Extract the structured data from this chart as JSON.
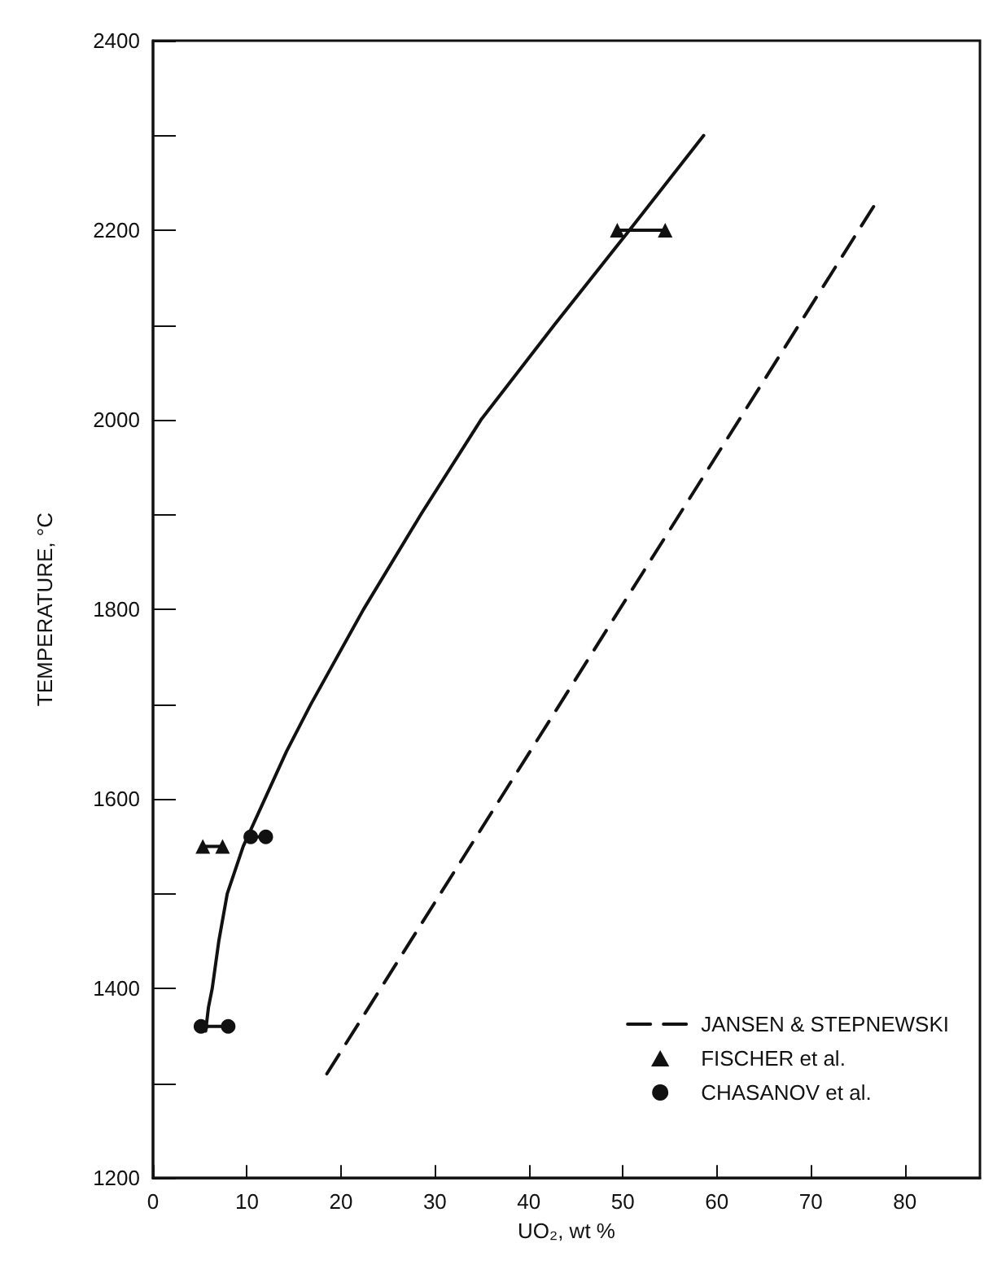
{
  "chart_data": {
    "type": "line",
    "xlabel": "UO₂, wt %",
    "ylabel": "TEMPERATURE, °C",
    "xlim": [
      0,
      88
    ],
    "xticks": [
      0,
      10,
      20,
      30,
      40,
      50,
      60,
      70,
      80
    ],
    "ylim": [
      1200,
      2400
    ],
    "yticks": [
      1200,
      {
        "value": 1300,
        "label": null
      },
      1400,
      {
        "value": 1500,
        "label": null
      },
      1600,
      {
        "value": 1700,
        "label": null
      },
      1800,
      {
        "value": 1900,
        "label": null
      },
      2000,
      {
        "value": 2100,
        "label": null
      },
      2200,
      {
        "value": 2300,
        "label": null
      },
      2400
    ],
    "grid": false,
    "legend": "bottom right",
    "series": [
      {
        "line_style": "solid",
        "marker": "none",
        "color": "#111111",
        "x": [
          5.6,
          5.9,
          6.3,
          7.0,
          7.9,
          9.6,
          11.9,
          14.2,
          16.8,
          22.4,
          28.5,
          34.9,
          42.7,
          50.7,
          58.6
        ],
        "values": [
          1355,
          1380,
          1400,
          1450,
          1500,
          1550,
          1600,
          1650,
          1700,
          1800,
          1900,
          2000,
          2100,
          2200,
          2300
        ]
      },
      {
        "name": "JANSEN & STEPNEWSKI",
        "line_style": "dashed",
        "marker": "none",
        "color": "#111111",
        "x": [
          18.5,
          77
        ],
        "values": [
          1310,
          2230
        ]
      },
      {
        "name": "FISCHER et al.",
        "line_style": "solid",
        "marker": "triangle",
        "color": "#111111",
        "x": [
          5.3,
          7.4,
          30,
          49.4,
          54.5
        ],
        "values": [
          1550,
          1550,
          null,
          2200,
          2200
        ]
      },
      {
        "name": "CHASANOV et al.",
        "line_style": "solid",
        "marker": "circle",
        "color": "#111111",
        "x": [
          5.1,
          8.0,
          9,
          10.4,
          12.0
        ],
        "values": [
          1360,
          1360,
          null,
          1560,
          1560
        ]
      }
    ]
  }
}
